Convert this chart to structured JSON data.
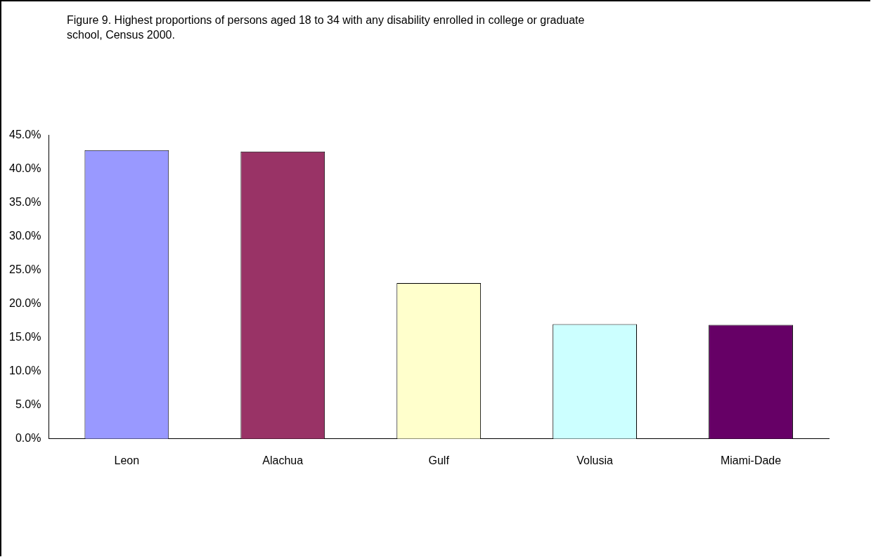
{
  "chart_data": {
    "type": "bar",
    "title": "Figure 9.  Highest proportions of persons aged 18 to 34 with any disability enrolled in college or graduate school, Census 2000.",
    "categories": [
      "Leon",
      "Alachua",
      "Gulf",
      "Volusia",
      "Miami-Dade"
    ],
    "values": [
      42.8,
      42.6,
      23.1,
      17.0,
      16.9
    ],
    "colors": [
      "#9999ff",
      "#993366",
      "#ffffcc",
      "#ccffff",
      "#660066"
    ],
    "ylim": [
      0,
      45
    ],
    "yticks": [
      {
        "value": 0,
        "label": "0.0%"
      },
      {
        "value": 5,
        "label": "5.0%"
      },
      {
        "value": 10,
        "label": "10.0%"
      },
      {
        "value": 15,
        "label": "15.0%"
      },
      {
        "value": 20,
        "label": "20.0%"
      },
      {
        "value": 25,
        "label": "25.0%"
      },
      {
        "value": 30,
        "label": "30.0%"
      },
      {
        "value": 35,
        "label": "35.0%"
      },
      {
        "value": 40,
        "label": "40.0%"
      },
      {
        "value": 45,
        "label": "45.0%"
      }
    ],
    "grid": false,
    "legend": false
  }
}
